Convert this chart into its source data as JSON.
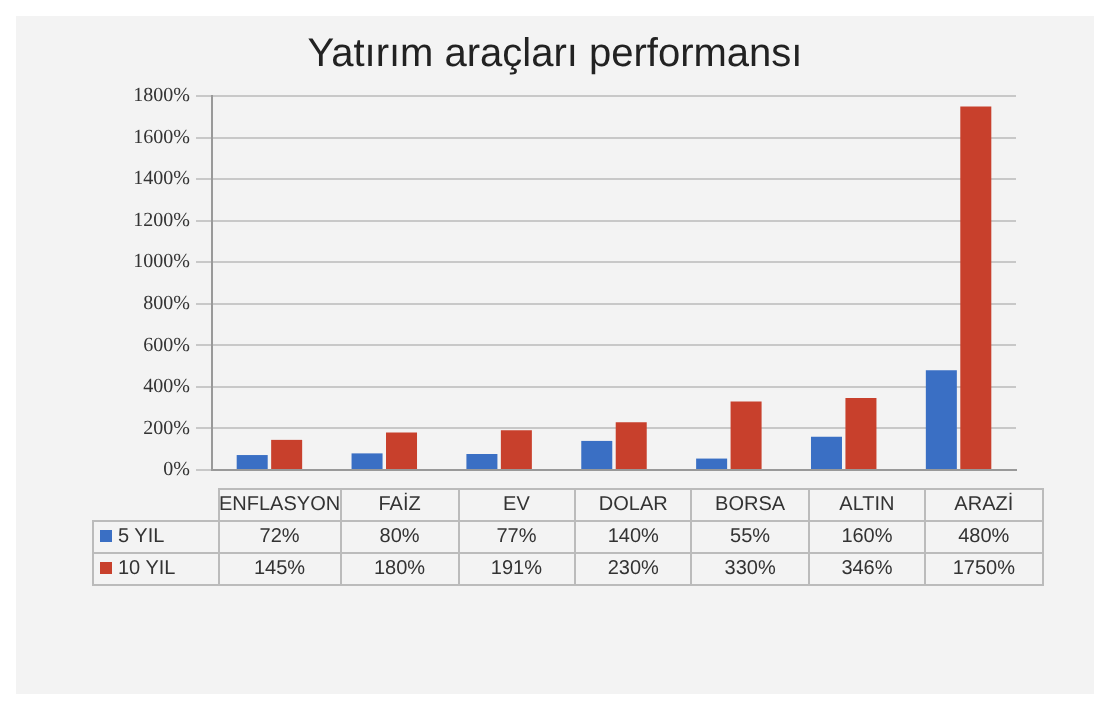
{
  "chart_data": {
    "type": "bar",
    "title": "Yatırım araçları performansı",
    "categories": [
      "ENFLASYON",
      "FAİZ",
      "EV",
      "DOLAR",
      "BORSA",
      "ALTIN",
      "ARAZİ"
    ],
    "series": [
      {
        "name": "5 YIL",
        "color": "#3a6fc4",
        "values": [
          72,
          80,
          77,
          140,
          55,
          160,
          480
        ],
        "value_labels": [
          "72%",
          "80%",
          "77%",
          "140%",
          "55%",
          "160%",
          "480%"
        ]
      },
      {
        "name": "10 YIL",
        "color": "#c8402c",
        "values": [
          145,
          180,
          191,
          230,
          330,
          346,
          1750
        ],
        "value_labels": [
          "145%",
          "180%",
          "191%",
          "230%",
          "330%",
          "346%",
          "1750%"
        ]
      }
    ],
    "ylim": [
      0,
      1800
    ],
    "yticks": [
      {
        "value": 0,
        "label": "0%"
      },
      {
        "value": 200,
        "label": "200%"
      },
      {
        "value": 400,
        "label": "400%"
      },
      {
        "value": 600,
        "label": "600%"
      },
      {
        "value": 800,
        "label": "800%"
      },
      {
        "value": 1000,
        "label": "1000%"
      },
      {
        "value": 1200,
        "label": "1200%"
      },
      {
        "value": 1400,
        "label": "1400%"
      },
      {
        "value": 1600,
        "label": "1600%"
      },
      {
        "value": 1800,
        "label": "1800%"
      }
    ],
    "grid": "y",
    "legend": "bottom"
  }
}
